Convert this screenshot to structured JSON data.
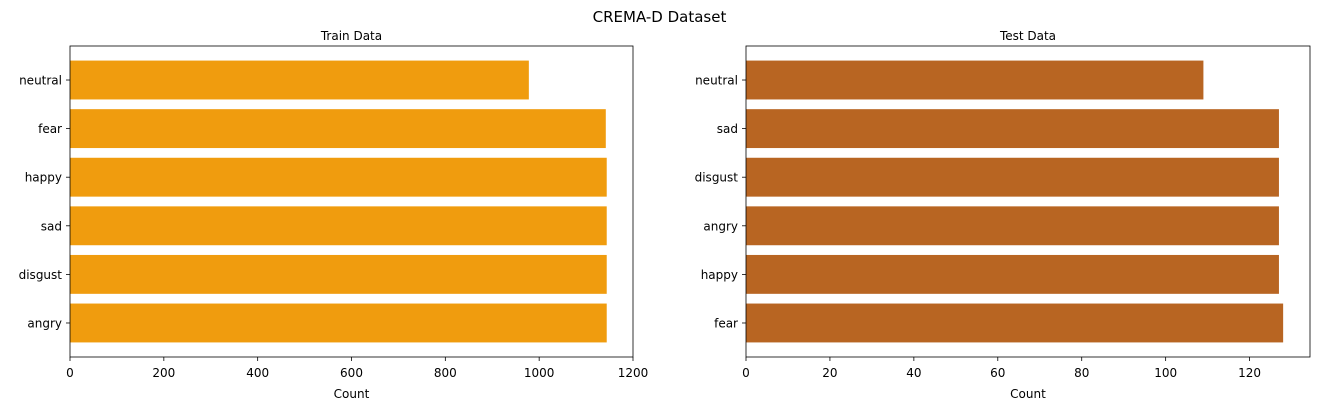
{
  "figure": {
    "title": "CREMA-D Dataset"
  },
  "chart_data": [
    {
      "type": "bar",
      "orientation": "horizontal",
      "title": "Train Data",
      "xlabel": "Count",
      "ylabel": "",
      "xlim": [
        0,
        1200
      ],
      "xticks": [
        0,
        200,
        400,
        600,
        800,
        1000,
        1200
      ],
      "categories": [
        "angry",
        "disgust",
        "sad",
        "happy",
        "fear",
        "neutral"
      ],
      "values": [
        1144,
        1144,
        1144,
        1144,
        1142,
        978
      ],
      "color": "#f09c0e",
      "grid": false
    },
    {
      "type": "bar",
      "orientation": "horizontal",
      "title": "Test Data",
      "xlabel": "Count",
      "ylabel": "",
      "xlim": [
        0,
        134.4
      ],
      "xticks": [
        0,
        20,
        40,
        60,
        80,
        100,
        120
      ],
      "categories": [
        "fear",
        "happy",
        "angry",
        "disgust",
        "sad",
        "neutral"
      ],
      "values": [
        128,
        127,
        127,
        127,
        127,
        109
      ],
      "color": "#b86522",
      "grid": false
    }
  ]
}
